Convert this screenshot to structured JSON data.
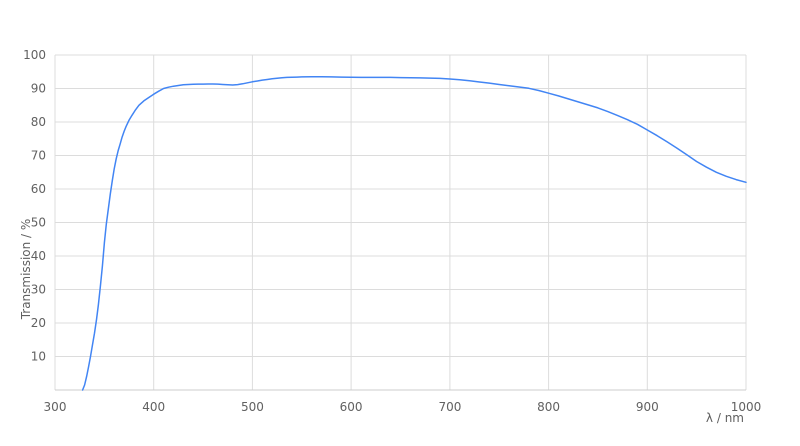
{
  "chart_data": {
    "type": "line",
    "title": "",
    "xlabel": "λ / nm",
    "ylabel": "Transmission / %",
    "xlim": [
      300,
      1000
    ],
    "ylim": [
      0,
      100
    ],
    "x_ticks": [
      300,
      400,
      500,
      600,
      700,
      800,
      900,
      1000
    ],
    "y_ticks": [
      10,
      20,
      30,
      40,
      50,
      60,
      70,
      80,
      90,
      100
    ],
    "grid": true,
    "legend": false,
    "series": [
      {
        "name": "Transmission",
        "color": "#4285f4",
        "points": [
          [
            328,
            0
          ],
          [
            330,
            1.5
          ],
          [
            332,
            4
          ],
          [
            334,
            7
          ],
          [
            336,
            10
          ],
          [
            338,
            13.5
          ],
          [
            340,
            17
          ],
          [
            342,
            21
          ],
          [
            344,
            25.5
          ],
          [
            346,
            31
          ],
          [
            348,
            37
          ],
          [
            350,
            44
          ],
          [
            352,
            49.5
          ],
          [
            354,
            54
          ],
          [
            356,
            58.5
          ],
          [
            358,
            62.5
          ],
          [
            360,
            66
          ],
          [
            362,
            69
          ],
          [
            364,
            71.5
          ],
          [
            366,
            73.5
          ],
          [
            368,
            75.5
          ],
          [
            370,
            77.2
          ],
          [
            372,
            78.7
          ],
          [
            375,
            80.5
          ],
          [
            378,
            82
          ],
          [
            381,
            83.4
          ],
          [
            385,
            85
          ],
          [
            390,
            86.3
          ],
          [
            395,
            87.3
          ],
          [
            400,
            88.3
          ],
          [
            405,
            89.2
          ],
          [
            410,
            90
          ],
          [
            415,
            90.4
          ],
          [
            420,
            90.7
          ],
          [
            425,
            90.9
          ],
          [
            430,
            91.1
          ],
          [
            435,
            91.2
          ],
          [
            440,
            91.25
          ],
          [
            445,
            91.3
          ],
          [
            450,
            91.3
          ],
          [
            455,
            91.35
          ],
          [
            460,
            91.35
          ],
          [
            465,
            91.3
          ],
          [
            470,
            91.2
          ],
          [
            475,
            91.1
          ],
          [
            480,
            91.05
          ],
          [
            485,
            91.15
          ],
          [
            490,
            91.4
          ],
          [
            495,
            91.7
          ],
          [
            500,
            92
          ],
          [
            505,
            92.25
          ],
          [
            510,
            92.5
          ],
          [
            515,
            92.7
          ],
          [
            520,
            92.9
          ],
          [
            525,
            93.05
          ],
          [
            530,
            93.2
          ],
          [
            535,
            93.3
          ],
          [
            540,
            93.35
          ],
          [
            545,
            93.4
          ],
          [
            550,
            93.45
          ],
          [
            560,
            93.5
          ],
          [
            570,
            93.5
          ],
          [
            580,
            93.45
          ],
          [
            590,
            93.4
          ],
          [
            600,
            93.35
          ],
          [
            610,
            93.3
          ],
          [
            620,
            93.3
          ],
          [
            630,
            93.3
          ],
          [
            640,
            93.3
          ],
          [
            650,
            93.25
          ],
          [
            660,
            93.2
          ],
          [
            670,
            93.15
          ],
          [
            680,
            93.1
          ],
          [
            690,
            93
          ],
          [
            700,
            92.85
          ],
          [
            710,
            92.6
          ],
          [
            720,
            92.3
          ],
          [
            730,
            91.95
          ],
          [
            740,
            91.6
          ],
          [
            750,
            91.2
          ],
          [
            760,
            90.8
          ],
          [
            770,
            90.45
          ],
          [
            780,
            90.05
          ],
          [
            790,
            89.4
          ],
          [
            800,
            88.6
          ],
          [
            810,
            87.8
          ],
          [
            820,
            86.9
          ],
          [
            830,
            86
          ],
          [
            840,
            85.1
          ],
          [
            850,
            84.2
          ],
          [
            860,
            83.1
          ],
          [
            870,
            81.9
          ],
          [
            880,
            80.7
          ],
          [
            890,
            79.3
          ],
          [
            900,
            77.6
          ],
          [
            910,
            75.9
          ],
          [
            920,
            74.1
          ],
          [
            930,
            72.2
          ],
          [
            940,
            70.2
          ],
          [
            950,
            68.2
          ],
          [
            960,
            66.5
          ],
          [
            970,
            65
          ],
          [
            980,
            63.8
          ],
          [
            990,
            62.8
          ],
          [
            1000,
            62
          ]
        ]
      }
    ]
  },
  "colors": {
    "line": "#4285f4",
    "grid": "#dcdcdc",
    "border": "#cccccc",
    "tick_text": "#616161",
    "background": "#ffffff"
  }
}
